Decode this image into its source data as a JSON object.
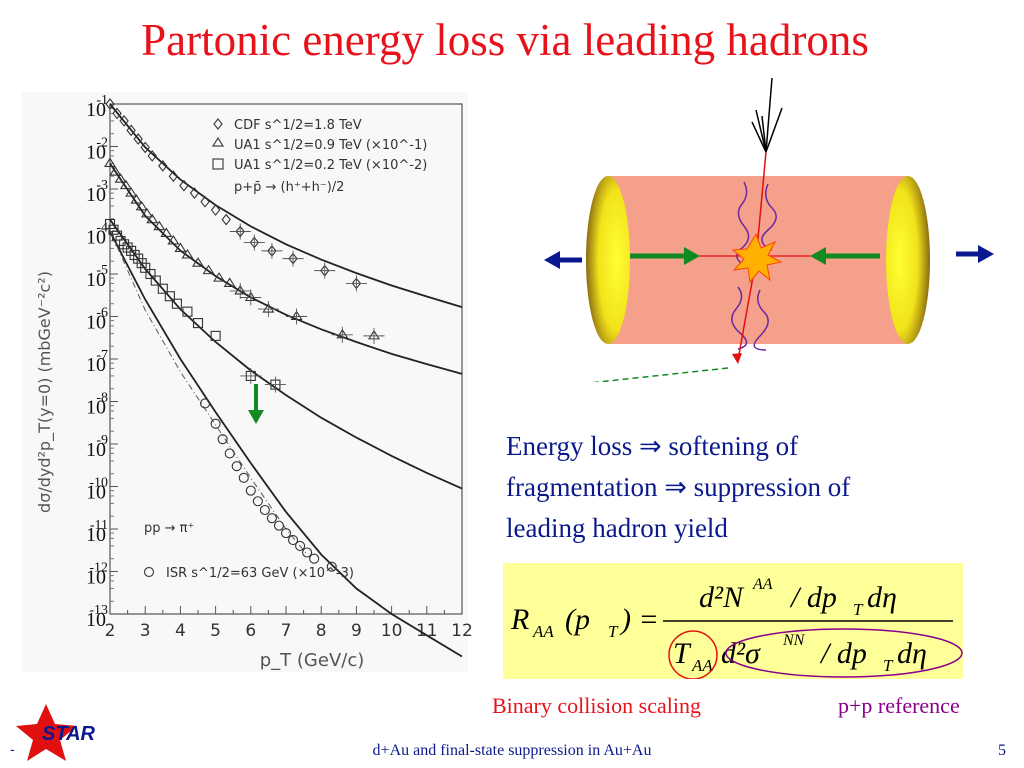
{
  "title": "Partonic energy loss via leading hadrons",
  "chart_data": {
    "type": "scatter",
    "y_scale": "log",
    "xlabel": "p_T (GeV/c)",
    "ylabel": "dσ/dyd²p_T(y=0) (mbGeV⁻²c²)",
    "x_ticks": [
      "2",
      "3",
      "4",
      "5",
      "6",
      "7",
      "8",
      "9",
      "10",
      "11",
      "12"
    ],
    "y_tick_exponents": [
      "-1",
      "-2",
      "-3",
      "-4",
      "-5",
      "-6",
      "-7",
      "-8",
      "-9",
      "-10",
      "-11",
      "-12",
      "-13"
    ],
    "y_tick_base": "10",
    "xlim": [
      2,
      12
    ],
    "ylim": [
      1e-13,
      0.1
    ],
    "legend": {
      "entries": [
        "CDF s^1/2=1.8 TeV",
        "UA1 s^1/2=0.9 TeV (×10^-1)",
        "UA1 s^1/2=0.2 TeV (×10^-2)"
      ],
      "process": "p+p̄ → (h⁺+h⁻)/2",
      "pion_process": "pp → π⁺",
      "pion_entry": "ISR s^1/2=63 GeV (×10^-3)"
    },
    "series": [
      {
        "name": "CDF s^1/2=1.8 TeV",
        "marker": "diamond",
        "x": [
          2.0,
          2.2,
          2.4,
          2.6,
          2.8,
          3.0,
          3.2,
          3.5,
          3.8,
          4.1,
          4.4,
          4.7,
          5.0,
          5.3,
          5.7,
          6.1,
          6.6,
          7.2,
          8.1,
          9.0
        ],
        "y": [
          0.1,
          0.06,
          0.04,
          0.024,
          0.015,
          0.0095,
          0.006,
          0.0035,
          0.002,
          0.0012,
          0.0008,
          0.0005,
          0.00032,
          0.00019,
          0.0001,
          5.5e-05,
          3.5e-05,
          2.3e-05,
          1.2e-05,
          6e-06
        ]
      },
      {
        "name": "UA1 s^1/2=0.9 TeV (×10^-1)",
        "marker": "triangle",
        "x": [
          2.0,
          2.15,
          2.3,
          2.45,
          2.6,
          2.75,
          2.9,
          3.05,
          3.2,
          3.4,
          3.6,
          3.8,
          4.0,
          4.2,
          4.5,
          4.8,
          5.1,
          5.4,
          5.7,
          6.0,
          6.5,
          7.3,
          8.6,
          9.5
        ],
        "y": [
          0.004,
          0.0025,
          0.0017,
          0.0012,
          0.0008,
          0.00055,
          0.00038,
          0.00026,
          0.00019,
          0.00013,
          9e-05,
          6e-05,
          4e-05,
          2.8e-05,
          1.8e-05,
          1.2e-05,
          8e-06,
          6e-06,
          4e-06,
          2.8e-06,
          1.5e-06,
          1e-06,
          3.7e-07,
          3.5e-07
        ]
      },
      {
        "name": "UA1 s^1/2=0.2 TeV (×10^-2)",
        "marker": "square",
        "x": [
          2.0,
          2.1,
          2.2,
          2.3,
          2.4,
          2.5,
          2.6,
          2.7,
          2.8,
          2.9,
          3.0,
          3.15,
          3.3,
          3.5,
          3.7,
          3.9,
          4.2,
          4.5,
          5.0,
          6.0,
          6.7
        ],
        "y": [
          0.00015,
          0.00011,
          8e-05,
          6e-05,
          5e-05,
          4.2e-05,
          3.5e-05,
          2.8e-05,
          2.3e-05,
          1.8e-05,
          1.4e-05,
          1e-05,
          7e-06,
          4.5e-06,
          3e-06,
          2e-06,
          1.3e-06,
          7e-07,
          3.5e-07,
          4e-08,
          2.5e-08
        ]
      },
      {
        "name": "ISR s^1/2=63 GeV (×10^-3)",
        "marker": "circle",
        "x": [
          4.7,
          5.0,
          5.2,
          5.4,
          5.6,
          5.8,
          6.0,
          6.2,
          6.4,
          6.6,
          6.8,
          7.0,
          7.2,
          7.4,
          7.6,
          7.8,
          8.3
        ],
        "y": [
          9e-09,
          3e-09,
          1.3e-09,
          6e-10,
          3e-10,
          1.6e-10,
          8e-11,
          4.5e-11,
          2.8e-11,
          1.8e-11,
          1.2e-11,
          8e-12,
          5.5e-12,
          4e-12,
          2.8e-12,
          2e-12,
          1.3e-12
        ]
      }
    ]
  },
  "bullet": {
    "line1": "Energy loss  ⇒ softening of",
    "line2": "fragmentation ⇒ suppression of",
    "line3": "leading hadron yield"
  },
  "formula": {
    "lhs": "R",
    "lhs_sub": "AA",
    "lhs_arg": "(p",
    "lhs_arg_sub": "T",
    "lhs_close": ") =",
    "num": "d²N",
    "num_sup": "AA",
    "num_tail": "/ dp",
    "num_sub": "T",
    "num_end": "dη",
    "den_T": "T",
    "den_T_sub": "AA",
    "den_mid": "d²σ",
    "den_sup": "NN",
    "den_tail": "/ dp",
    "den_sub": "T",
    "den_end": "dη"
  },
  "labels": {
    "binary": "Binary collision scaling",
    "ppref": "p+p reference"
  },
  "footer": {
    "text": "d+Au and final-state suppression in Au+Au",
    "page": "5",
    "logo_text": "STAR",
    "logo_dash": "-"
  },
  "colors": {
    "title": "#e8121a",
    "text": "#0a1a8c",
    "arrow_green": "#128a22",
    "arrow_blue": "#0a1890",
    "cylinder": "#f5a08a",
    "formula_bg": "#ffff99"
  }
}
